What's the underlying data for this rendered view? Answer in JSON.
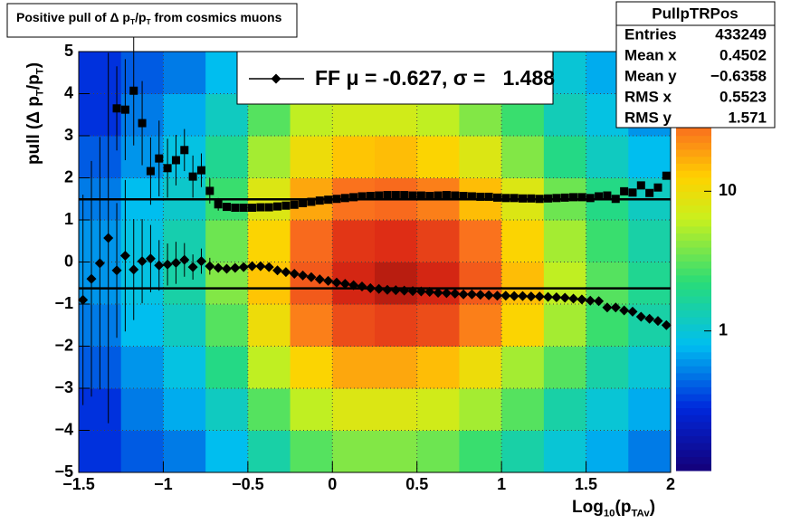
{
  "chart_data": {
    "type": "histogram2d",
    "title": [
      "Positive pull of Δ p",
      "T",
      "/p",
      "T",
      " from cosmics muons"
    ],
    "xlabel": [
      "Log",
      "10",
      "(p",
      "TAv",
      ")"
    ],
    "ylabel": [
      "pull (Δ p",
      "T",
      "/p",
      "T",
      ")"
    ],
    "xlim": [
      -1.5,
      2
    ],
    "ylim": [
      -5,
      5
    ],
    "xticks": [
      {
        "value": -1.5,
        "label": "−1.5"
      },
      {
        "value": -1,
        "label": "−1"
      },
      {
        "value": -0.5,
        "label": "−0.5"
      },
      0,
      0.5,
      1,
      1.5,
      2
    ],
    "yticks": [
      {
        "value": -5,
        "label": "−5"
      },
      {
        "value": -4,
        "label": "−4"
      },
      {
        "value": -3,
        "label": "−3"
      },
      {
        "value": -2,
        "label": "−2"
      },
      {
        "value": -1,
        "label": "−1"
      },
      0,
      1,
      2,
      3,
      4,
      5
    ],
    "grid": true,
    "zlog": true,
    "zlim": [
      0.1,
      100
    ],
    "zticks": [
      1,
      10
    ],
    "xbins": [
      -1.5,
      -1.25,
      -1,
      -0.75,
      -0.5,
      -0.25,
      0,
      0.25,
      0.5,
      0.75,
      1,
      1.25,
      1.5,
      1.75,
      2
    ],
    "ybins": [
      -5,
      -4,
      -3,
      -2,
      -1,
      0,
      1,
      2,
      3,
      4,
      5
    ],
    "z": [
      [
        0.3,
        0.4,
        0.5,
        0.8,
        1.5,
        3,
        4,
        4,
        3.5,
        2.5,
        1.5,
        1,
        0.7,
        0.5
      ],
      [
        0.3,
        0.5,
        0.7,
        1.2,
        3,
        6,
        8,
        8,
        7,
        5,
        3,
        1.5,
        1,
        0.7
      ],
      [
        0.4,
        0.6,
        0.9,
        2,
        6,
        12,
        18,
        18,
        15,
        10,
        5,
        3,
        1.5,
        1
      ],
      [
        0.5,
        0.8,
        1.2,
        3,
        10,
        25,
        40,
        45,
        40,
        25,
        12,
        5,
        2.5,
        1.5
      ],
      [
        0.6,
        0.9,
        1.5,
        4,
        14,
        35,
        60,
        70,
        60,
        35,
        15,
        6,
        3,
        1.8
      ],
      [
        0.6,
        0.9,
        1.4,
        3.5,
        12,
        30,
        50,
        55,
        45,
        28,
        12,
        5,
        2.5,
        1.5
      ],
      [
        0.5,
        0.8,
        1.1,
        2.5,
        8,
        18,
        28,
        30,
        25,
        15,
        8,
        3.5,
        2,
        1.2
      ],
      [
        0.4,
        0.6,
        0.9,
        1.8,
        5,
        10,
        14,
        15,
        12,
        8,
        4,
        2,
        1.2,
        0.8
      ],
      [
        0.3,
        0.5,
        0.7,
        1.2,
        3,
        6,
        7,
        7,
        6,
        4,
        2.5,
        1.3,
        0.9,
        0.6
      ],
      [
        0.3,
        0.4,
        0.5,
        0.8,
        2,
        3.5,
        4,
        4,
        3.5,
        2.5,
        1.5,
        1,
        0.7,
        0.5
      ]
    ],
    "x": [
      -1.475,
      -1.425,
      -1.375,
      -1.325,
      -1.275,
      -1.225,
      -1.175,
      -1.125,
      -1.075,
      -1.025,
      -0.975,
      -0.925,
      -0.875,
      -0.825,
      -0.775,
      -0.725,
      -0.675,
      -0.625,
      -0.575,
      -0.525,
      -0.475,
      -0.425,
      -0.375,
      -0.325,
      -0.275,
      -0.225,
      -0.175,
      -0.125,
      -0.075,
      -0.025,
      0.025,
      0.075,
      0.125,
      0.175,
      0.225,
      0.275,
      0.325,
      0.375,
      0.425,
      0.475,
      0.525,
      0.575,
      0.625,
      0.675,
      0.725,
      0.775,
      0.825,
      0.875,
      0.925,
      0.975,
      1.025,
      1.075,
      1.125,
      1.175,
      1.225,
      1.275,
      1.325,
      1.375,
      1.425,
      1.475,
      1.525,
      1.575,
      1.625,
      1.675,
      1.725,
      1.775,
      1.825,
      1.875,
      1.925,
      1.975
    ],
    "series": [
      {
        "marker": "square",
        "color": "#000000",
        "values": [
          null,
          null,
          null,
          null,
          3.65,
          3.62,
          4.07,
          3.3,
          2.16,
          2.46,
          2.23,
          2.42,
          2.66,
          2.03,
          2.18,
          1.69,
          1.37,
          1.31,
          1.29,
          1.29,
          1.29,
          1.3,
          1.3,
          1.32,
          1.34,
          1.36,
          1.4,
          1.43,
          1.46,
          1.48,
          1.5,
          1.52,
          1.54,
          1.56,
          1.57,
          1.58,
          1.59,
          1.59,
          1.59,
          1.58,
          1.58,
          1.57,
          1.58,
          1.59,
          1.58,
          1.57,
          1.56,
          1.55,
          1.55,
          1.53,
          1.52,
          1.52,
          1.51,
          1.51,
          1.5,
          1.51,
          1.52,
          1.53,
          1.54,
          1.54,
          1.52,
          1.56,
          1.58,
          1.5,
          1.68,
          1.65,
          1.82,
          1.64,
          1.77,
          2.05
        ],
        "errors": [
          null,
          null,
          null,
          null,
          1.0,
          1.2,
          1.3,
          1.0,
          0.8,
          0.9,
          0.7,
          0.6,
          0.5,
          0.5,
          0.4,
          0.3,
          0.15,
          0.03,
          0.03,
          0.03,
          0.03,
          0.03,
          0.03,
          0.03,
          0.03,
          0.03,
          0.03,
          0.03,
          0.03,
          0.03,
          0.03,
          0.03,
          0.03,
          0.03,
          0.03,
          0.03,
          0.03,
          0.03,
          0.03,
          0.03,
          0.03,
          0.03,
          0.03,
          0.03,
          0.03,
          0.03,
          0.03,
          0.03,
          0.03,
          0.03,
          0.03,
          0.03,
          0.03,
          0.03,
          0.03,
          0.03,
          0.03,
          0.03,
          0.03,
          0.03,
          0.03,
          0.03,
          0.03,
          0.03,
          0.03,
          0.03,
          0.03,
          0.03,
          0.03,
          0.03
        ]
      },
      {
        "name": [
          "FF μ = -0.627, σ =   1.488"
        ],
        "marker": "diamond",
        "color": "#000000",
        "values": [
          -0.9,
          -0.4,
          -0.03,
          0.57,
          -0.2,
          0.15,
          -0.18,
          0.02,
          0.08,
          -0.08,
          -0.06,
          -0.02,
          0.05,
          -0.12,
          0.02,
          -0.1,
          -0.14,
          -0.16,
          -0.14,
          -0.12,
          -0.1,
          -0.1,
          -0.12,
          -0.2,
          -0.24,
          -0.28,
          -0.32,
          -0.36,
          -0.41,
          -0.45,
          -0.49,
          -0.52,
          -0.55,
          -0.58,
          -0.62,
          -0.64,
          -0.66,
          -0.67,
          -0.68,
          -0.69,
          -0.7,
          -0.71,
          -0.73,
          -0.74,
          -0.75,
          -0.77,
          -0.77,
          -0.78,
          -0.79,
          -0.8,
          -0.8,
          -0.81,
          -0.81,
          -0.82,
          -0.82,
          -0.83,
          -0.84,
          -0.85,
          -0.87,
          -0.89,
          -0.92,
          -0.93,
          -1.08,
          -1.08,
          -1.15,
          -1.18,
          -1.3,
          -1.35,
          -1.4,
          -1.5
        ],
        "errors": [
          2.5,
          2.8,
          3,
          4.4,
          1.6,
          1.8,
          1.2,
          1.0,
          0.8,
          0.6,
          0.5,
          0.5,
          0.4,
          0.3,
          0.3,
          0.2,
          0.1,
          0.03,
          0.03,
          0.03,
          0.03,
          0.03,
          0.03,
          0.03,
          0.03,
          0.03,
          0.03,
          0.03,
          0.03,
          0.03,
          0.03,
          0.03,
          0.03,
          0.03,
          0.03,
          0.03,
          0.03,
          0.03,
          0.03,
          0.03,
          0.03,
          0.03,
          0.03,
          0.03,
          0.03,
          0.03,
          0.03,
          0.03,
          0.03,
          0.03,
          0.03,
          0.03,
          0.03,
          0.03,
          0.03,
          0.03,
          0.03,
          0.03,
          0.03,
          0.03,
          0.03,
          0.03,
          0.03,
          0.03,
          0.03,
          0.03,
          0.03,
          0.03,
          0.03,
          0.03
        ]
      }
    ],
    "hlines": [
      1.488,
      -0.627
    ],
    "stats": {
      "title": "PullpTRPos",
      "rows": [
        {
          "label": "Entries",
          "value": "433249"
        },
        {
          "label": "Mean x",
          "value": "0.4502"
        },
        {
          "label": "Mean y",
          "value": "−0.6358"
        },
        {
          "label": "RMS x",
          "value": "0.5523"
        },
        {
          "label": "RMS y",
          "value": "1.571"
        }
      ]
    }
  }
}
